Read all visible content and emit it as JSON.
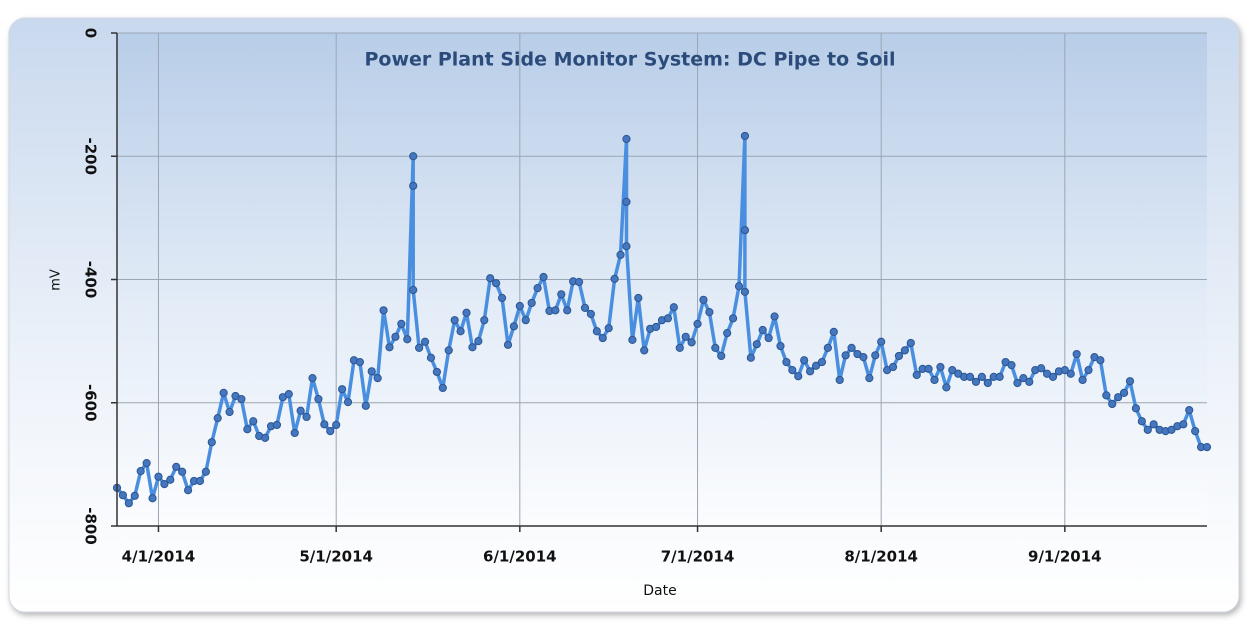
{
  "chart_data": {
    "type": "line",
    "title": "Power Plant Side Monitor System: DC Pipe to Soil",
    "xlabel": "Date",
    "ylabel": "mV",
    "color": "#4a8fdf",
    "marker_color": "#4477c0",
    "grid": true,
    "ylim": [
      -800,
      0
    ],
    "yticks": [
      0,
      -200,
      -400,
      -600,
      -800
    ],
    "xlim": [
      "2014-03-25",
      "2014-09-25"
    ],
    "xticks": [
      {
        "value": "2014-04-01",
        "label": "4/1/2014"
      },
      {
        "value": "2014-05-01",
        "label": "5/1/2014"
      },
      {
        "value": "2014-06-01",
        "label": "6/1/2014"
      },
      {
        "value": "2014-07-01",
        "label": "7/1/2014"
      },
      {
        "value": "2014-08-01",
        "label": "8/1/2014"
      },
      {
        "value": "2014-09-01",
        "label": "9/1/2014"
      }
    ],
    "x": [
      "2014-03-25",
      "2014-03-26",
      "2014-03-27",
      "2014-03-28",
      "2014-03-29",
      "2014-03-30",
      "2014-03-31",
      "2014-04-01",
      "2014-04-02",
      "2014-04-03",
      "2014-04-04",
      "2014-04-05",
      "2014-04-06",
      "2014-04-07",
      "2014-04-08",
      "2014-04-09",
      "2014-04-10",
      "2014-04-11",
      "2014-04-12",
      "2014-04-13",
      "2014-04-14",
      "2014-04-15",
      "2014-04-16",
      "2014-04-17",
      "2014-04-18",
      "2014-04-19",
      "2014-04-20",
      "2014-04-21",
      "2014-04-22",
      "2014-04-23",
      "2014-04-24",
      "2014-04-25",
      "2014-04-26",
      "2014-04-27",
      "2014-04-28",
      "2014-04-29",
      "2014-04-30",
      "2014-05-01",
      "2014-05-02",
      "2014-05-03",
      "2014-05-04",
      "2014-05-05",
      "2014-05-06",
      "2014-05-07",
      "2014-05-08",
      "2014-05-09",
      "2014-05-10",
      "2014-05-11",
      "2014-05-12",
      "2014-05-13",
      "2014-05-14",
      "2014-05-14",
      "2014-05-14",
      "2014-05-15",
      "2014-05-16",
      "2014-05-17",
      "2014-05-18",
      "2014-05-19",
      "2014-05-20",
      "2014-05-21",
      "2014-05-22",
      "2014-05-23",
      "2014-05-24",
      "2014-05-25",
      "2014-05-26",
      "2014-05-27",
      "2014-05-28",
      "2014-05-29",
      "2014-05-30",
      "2014-05-31",
      "2014-06-01",
      "2014-06-02",
      "2014-06-03",
      "2014-06-04",
      "2014-06-05",
      "2014-06-06",
      "2014-06-07",
      "2014-06-08",
      "2014-06-09",
      "2014-06-10",
      "2014-06-11",
      "2014-06-12",
      "2014-06-13",
      "2014-06-14",
      "2014-06-15",
      "2014-06-16",
      "2014-06-17",
      "2014-06-18",
      "2014-06-19",
      "2014-06-19",
      "2014-06-19",
      "2014-06-20",
      "2014-06-21",
      "2014-06-22",
      "2014-06-23",
      "2014-06-24",
      "2014-06-25",
      "2014-06-26",
      "2014-06-27",
      "2014-06-28",
      "2014-06-29",
      "2014-06-30",
      "2014-07-01",
      "2014-07-02",
      "2014-07-03",
      "2014-07-04",
      "2014-07-05",
      "2014-07-06",
      "2014-07-07",
      "2014-07-08",
      "2014-07-09",
      "2014-07-09",
      "2014-07-09",
      "2014-07-10",
      "2014-07-11",
      "2014-07-12",
      "2014-07-13",
      "2014-07-14",
      "2014-07-15",
      "2014-07-16",
      "2014-07-17",
      "2014-07-18",
      "2014-07-19",
      "2014-07-20",
      "2014-07-21",
      "2014-07-22",
      "2014-07-23",
      "2014-07-24",
      "2014-07-25",
      "2014-07-26",
      "2014-07-27",
      "2014-07-28",
      "2014-07-29",
      "2014-07-30",
      "2014-07-31",
      "2014-08-01",
      "2014-08-02",
      "2014-08-03",
      "2014-08-04",
      "2014-08-05",
      "2014-08-06",
      "2014-08-07",
      "2014-08-08",
      "2014-08-09",
      "2014-08-10",
      "2014-08-11",
      "2014-08-12",
      "2014-08-13",
      "2014-08-14",
      "2014-08-15",
      "2014-08-16",
      "2014-08-17",
      "2014-08-18",
      "2014-08-19",
      "2014-08-20",
      "2014-08-21",
      "2014-08-22",
      "2014-08-23",
      "2014-08-24",
      "2014-08-25",
      "2014-08-26",
      "2014-08-27",
      "2014-08-28",
      "2014-08-29",
      "2014-08-30",
      "2014-08-31",
      "2014-09-01",
      "2014-09-02",
      "2014-09-03",
      "2014-09-04",
      "2014-09-05",
      "2014-09-06",
      "2014-09-07",
      "2014-09-08",
      "2014-09-09",
      "2014-09-10",
      "2014-09-11",
      "2014-09-12",
      "2014-09-13",
      "2014-09-14",
      "2014-09-15",
      "2014-09-16",
      "2014-09-17",
      "2014-09-18",
      "2014-09-19",
      "2014-09-20",
      "2014-09-21",
      "2014-09-22",
      "2014-09-23",
      "2014-09-24",
      "2014-09-25"
    ],
    "values": [
      -738,
      -750,
      -763,
      -751,
      -711,
      -698,
      -755,
      -720,
      -732,
      -725,
      -704,
      -712,
      -742,
      -727,
      -727,
      -712,
      -664,
      -625,
      -584,
      -615,
      -589,
      -594,
      -643,
      -630,
      -654,
      -657,
      -638,
      -636,
      -591,
      -586,
      -649,
      -613,
      -623,
      -560,
      -594,
      -635,
      -646,
      -636,
      -578,
      -599,
      -531,
      -534,
      -605,
      -549,
      -560,
      -450,
      -510,
      -493,
      -472,
      -497,
      -200,
      -248,
      -417,
      -511,
      -501,
      -527,
      -550,
      -576,
      -515,
      -466,
      -484,
      -454,
      -510,
      -500,
      -466,
      -398,
      -406,
      -430,
      -506,
      -476,
      -443,
      -466,
      -438,
      -414,
      -396,
      -451,
      -450,
      -424,
      -450,
      -403,
      -404,
      -446,
      -456,
      -484,
      -495,
      -479,
      -399,
      -360,
      -172,
      -274,
      -346,
      -498,
      -430,
      -515,
      -480,
      -477,
      -466,
      -463,
      -445,
      -511,
      -493,
      -502,
      -472,
      -433,
      -453,
      -511,
      -524,
      -487,
      -463,
      -411,
      -167,
      -320,
      -420,
      -527,
      -505,
      -482,
      -495,
      -460,
      -508,
      -534,
      -547,
      -557,
      -531,
      -549,
      -540,
      -534,
      -511,
      -485,
      -563,
      -523,
      -511,
      -521,
      -526,
      -560,
      -523,
      -501,
      -547,
      -542,
      -524,
      -515,
      -503,
      -555,
      -545,
      -545,
      -563,
      -542,
      -575,
      -547,
      -553,
      -558,
      -558,
      -566,
      -558,
      -568,
      -558,
      -558,
      -534,
      -539,
      -568,
      -560,
      -566,
      -547,
      -544,
      -553,
      -558,
      -549,
      -547,
      -553,
      -521,
      -563,
      -547,
      -526,
      -531,
      -588,
      -602,
      -591,
      -584,
      -565,
      -609,
      -630,
      -644,
      -635,
      -644,
      -646,
      -644,
      -638,
      -635,
      -612,
      -646,
      -672,
      -672
    ]
  }
}
